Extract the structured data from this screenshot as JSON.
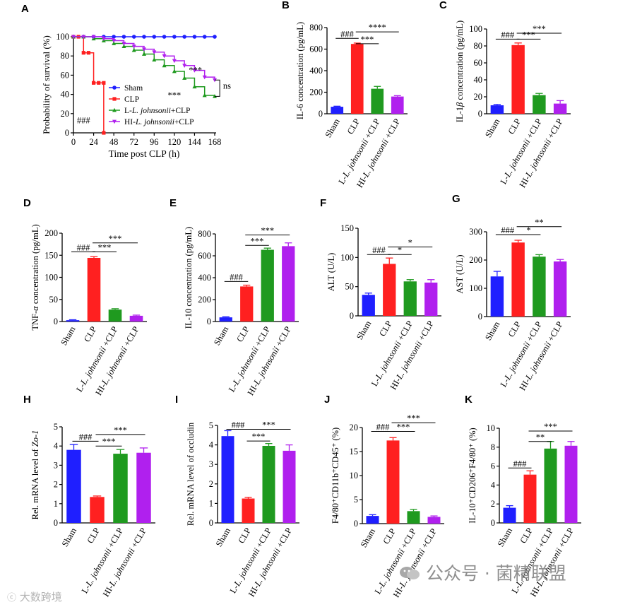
{
  "colors": {
    "sham": "#1f1fff",
    "clp": "#ff2020",
    "low": "#1f9a1f",
    "high": "#b020ee",
    "axis": "#000000"
  },
  "watermark": {
    "right_text": "公众号 · 菌精联盟",
    "left_text": "大数跨境"
  },
  "chart_data": [
    {
      "panel": "A",
      "type": "line",
      "ylabel": "Probability of survival (%)",
      "xlabel": "Time post CLP (h)",
      "xlim": [
        0,
        168
      ],
      "ylim": [
        0,
        100
      ],
      "xticks": [
        0,
        24,
        48,
        72,
        96,
        120,
        144,
        168
      ],
      "yticks": [
        0,
        20,
        40,
        60,
        80,
        100
      ],
      "legend_position": "right",
      "legend": [
        "Sham",
        "CLP",
        "L-L. johnsonii+CLP",
        "HI-L. johnsonii+CLP"
      ],
      "series": [
        {
          "name": "Sham",
          "color": "sham",
          "marker": "circle",
          "x": [
            0,
            12,
            24,
            36,
            48,
            60,
            72,
            84,
            96,
            108,
            120,
            132,
            144,
            156,
            168
          ],
          "y": [
            100,
            100,
            100,
            100,
            100,
            100,
            100,
            100,
            100,
            100,
            100,
            100,
            100,
            100,
            100
          ]
        },
        {
          "name": "CLP",
          "color": "clp",
          "marker": "square",
          "x": [
            0,
            6,
            12,
            18,
            24,
            30,
            36,
            36
          ],
          "y": [
            100,
            100,
            83.3,
            83.3,
            52,
            52,
            52,
            0
          ]
        },
        {
          "name": "L-L. johnsonii+CLP",
          "color": "low",
          "marker": "triangle",
          "x": [
            0,
            12,
            24,
            36,
            48,
            60,
            72,
            84,
            96,
            108,
            120,
            132,
            144,
            156,
            168
          ],
          "y": [
            100,
            100,
            98,
            96,
            93,
            90,
            86,
            82,
            76,
            70,
            64,
            57,
            48,
            39,
            38
          ]
        },
        {
          "name": "HI-L. johnsonii+CLP",
          "color": "high",
          "marker": "triangle-down",
          "x": [
            0,
            12,
            24,
            36,
            48,
            60,
            72,
            84,
            96,
            108,
            120,
            132,
            144,
            156,
            168
          ],
          "y": [
            100,
            100,
            100,
            98,
            96,
            93,
            90,
            87,
            84,
            80,
            75,
            70,
            65,
            58,
            55
          ]
        }
      ],
      "annotations": [
        {
          "text": "###",
          "x": 12,
          "y": 10
        },
        {
          "text": "***",
          "x": 145,
          "y": 62
        },
        {
          "text": "***",
          "x": 120,
          "y": 36
        },
        {
          "text": "ns",
          "x": 178,
          "y": 46
        }
      ]
    },
    {
      "panel": "B",
      "type": "bar",
      "ylabel": "IL-6 concentration (pg/mL)",
      "ylim": [
        0,
        800
      ],
      "yticks": [
        0,
        200,
        400,
        600,
        800
      ],
      "categories": [
        "Sham",
        "CLP",
        "L-L. johnsonii +CLP",
        "HI-L. johnsonii +CLP"
      ],
      "values": [
        65,
        648,
        232,
        160
      ],
      "errors": [
        5,
        8,
        22,
        8
      ],
      "sig": [
        {
          "from": 0,
          "to": 1,
          "text": "###",
          "y": 700
        },
        {
          "from": 1,
          "to": 2,
          "text": "***",
          "y": 650
        },
        {
          "from": 1,
          "to": 3,
          "text": "****",
          "y": 760
        }
      ]
    },
    {
      "panel": "C",
      "type": "bar",
      "ylabel": "IL-1β concentration (pg/mL)",
      "ylim": [
        0,
        100
      ],
      "yticks": [
        0,
        20,
        40,
        60,
        80,
        100
      ],
      "categories": [
        "Sham",
        "CLP",
        "L-L. johnsonii +CLP",
        "HI-L. johnsonii +CLP"
      ],
      "values": [
        10,
        81,
        22,
        12
      ],
      "errors": [
        1,
        2.5,
        2,
        3.5
      ],
      "sig": [
        {
          "from": 0,
          "to": 1,
          "text": "###",
          "y": 88
        },
        {
          "from": 1,
          "to": 2,
          "text": "***",
          "y": 88
        },
        {
          "from": 1,
          "to": 3,
          "text": "***",
          "y": 95
        }
      ]
    },
    {
      "panel": "D",
      "type": "bar",
      "ylabel": "TNF-α concentration (pg/mL)",
      "ylim": [
        0,
        200
      ],
      "yticks": [
        0,
        50,
        100,
        150,
        200
      ],
      "categories": [
        "Sham",
        "CLP",
        "L-L. johnsonii +CLP",
        "HI-L. johnsonii +CLP"
      ],
      "values": [
        3,
        144,
        27,
        13
      ],
      "errors": [
        1,
        3,
        2,
        1.5
      ],
      "sig": [
        {
          "from": 0,
          "to": 1,
          "text": "###",
          "y": 158
        },
        {
          "from": 1,
          "to": 2,
          "text": "***",
          "y": 158
        },
        {
          "from": 1,
          "to": 3,
          "text": "***",
          "y": 178
        }
      ]
    },
    {
      "panel": "E",
      "type": "bar",
      "ylabel": "IL-10 concentration (pg/mL)",
      "ylim": [
        0,
        800
      ],
      "yticks": [
        0,
        200,
        400,
        600,
        800
      ],
      "categories": [
        "Sham",
        "CLP",
        "L-L. johnsonii +CLP",
        "HI-L. johnsonii +CLP"
      ],
      "values": [
        38,
        320,
        655,
        688
      ],
      "errors": [
        5,
        12,
        15,
        30
      ],
      "sig": [
        {
          "from": 0,
          "to": 1,
          "text": "###",
          "y": 365
        },
        {
          "from": 1,
          "to": 2,
          "text": "***",
          "y": 695
        },
        {
          "from": 1,
          "to": 3,
          "text": "***",
          "y": 790
        }
      ]
    },
    {
      "panel": "F",
      "type": "bar",
      "ylabel": "ALT (U/L)",
      "ylim": [
        0,
        150
      ],
      "yticks": [
        0,
        50,
        100,
        150
      ],
      "categories": [
        "Sham",
        "CLP",
        "L-L. johnsonii +CLP",
        "HI-L. johnsonii +CLP"
      ],
      "values": [
        36,
        89,
        59,
        57
      ],
      "errors": [
        3,
        10,
        3,
        5
      ],
      "sig": [
        {
          "from": 0,
          "to": 1,
          "text": "###",
          "y": 105
        },
        {
          "from": 1,
          "to": 2,
          "text": "*",
          "y": 105
        },
        {
          "from": 1,
          "to": 3,
          "text": "*",
          "y": 118
        }
      ]
    },
    {
      "panel": "G",
      "type": "bar",
      "ylabel": "AST (U/L)",
      "ylim": [
        0,
        300
      ],
      "yticks": [
        0,
        100,
        200,
        300
      ],
      "categories": [
        "Sham",
        "CLP",
        "L-L. johnsonii +CLP",
        "HI-L. johnsonii +CLP"
      ],
      "values": [
        142,
        262,
        212,
        195
      ],
      "errors": [
        18,
        8,
        7,
        7
      ],
      "sig": [
        {
          "from": 0,
          "to": 1,
          "text": "###",
          "y": 290
        },
        {
          "from": 1,
          "to": 2,
          "text": "*",
          "y": 290
        },
        {
          "from": 1,
          "to": 3,
          "text": "**",
          "y": 318
        }
      ]
    },
    {
      "panel": "H",
      "type": "bar",
      "ylabel": "Rel. mRNA level of Zo-1",
      "ylim": [
        0,
        5
      ],
      "yticks": [
        0,
        1,
        2,
        3,
        4,
        5
      ],
      "categories": [
        "Sham",
        "CLP",
        "L-L. johnsonii +CLP",
        "HI-L. johnsonii +CLP"
      ],
      "values": [
        3.8,
        1.35,
        3.6,
        3.65
      ],
      "errors": [
        0.28,
        0.05,
        0.22,
        0.25
      ],
      "sig": [
        {
          "from": 0,
          "to": 1,
          "text": "###",
          "y": 4.25
        },
        {
          "from": 1,
          "to": 2,
          "text": "***",
          "y": 4.0
        },
        {
          "from": 1,
          "to": 3,
          "text": "***",
          "y": 4.6
        }
      ]
    },
    {
      "panel": "I",
      "type": "bar",
      "ylabel": "Rel. mRNA level of occludin",
      "ylim": [
        0,
        5
      ],
      "yticks": [
        0,
        1,
        2,
        3,
        4,
        5
      ],
      "categories": [
        "Sham",
        "CLP",
        "L-L. johnsonii +CLP",
        "HI-L. johnsonii +CLP"
      ],
      "values": [
        4.45,
        1.25,
        3.95,
        3.7
      ],
      "errors": [
        0.28,
        0.06,
        0.12,
        0.3
      ],
      "sig": [
        {
          "from": 0,
          "to": 1,
          "text": "###",
          "y": 4.8
        },
        {
          "from": 1,
          "to": 2,
          "text": "***",
          "y": 4.2
        },
        {
          "from": 1,
          "to": 3,
          "text": "***",
          "y": 4.8
        }
      ]
    },
    {
      "panel": "J",
      "type": "bar",
      "ylabel": "F4/80⁺CD11b⁺CD45⁺ (%)",
      "ylim": [
        0,
        20
      ],
      "yticks": [
        0,
        5,
        10,
        15,
        20
      ],
      "categories": [
        "Sham",
        "CLP",
        "L-L. johnsonii +CLP",
        "HI-L. johnsonii +CLP"
      ],
      "values": [
        1.6,
        17.3,
        2.6,
        1.4
      ],
      "errors": [
        0.25,
        0.6,
        0.35,
        0.2
      ],
      "sig": [
        {
          "from": 0,
          "to": 1,
          "text": "###",
          "y": 19.2
        },
        {
          "from": 1,
          "to": 2,
          "text": "***",
          "y": 19.2
        },
        {
          "from": 1,
          "to": 3,
          "text": "***",
          "y": 21
        }
      ]
    },
    {
      "panel": "K",
      "type": "bar",
      "ylabel": "IL-10⁺CD206⁺F4/80⁺ (%)",
      "ylim": [
        0,
        10
      ],
      "yticks": [
        0,
        2,
        4,
        6,
        8,
        10
      ],
      "categories": [
        "Sham",
        "CLP",
        "L-L. johnsonii +CLP",
        "HI-L. johnsonii +CLP"
      ],
      "values": [
        1.6,
        5.1,
        7.85,
        8.15
      ],
      "errors": [
        0.22,
        0.4,
        0.75,
        0.45
      ],
      "sig": [
        {
          "from": 0,
          "to": 1,
          "text": "###",
          "y": 5.8
        },
        {
          "from": 1,
          "to": 2,
          "text": "**",
          "y": 8.6
        },
        {
          "from": 1,
          "to": 3,
          "text": "***",
          "y": 9.7
        }
      ]
    }
  ]
}
